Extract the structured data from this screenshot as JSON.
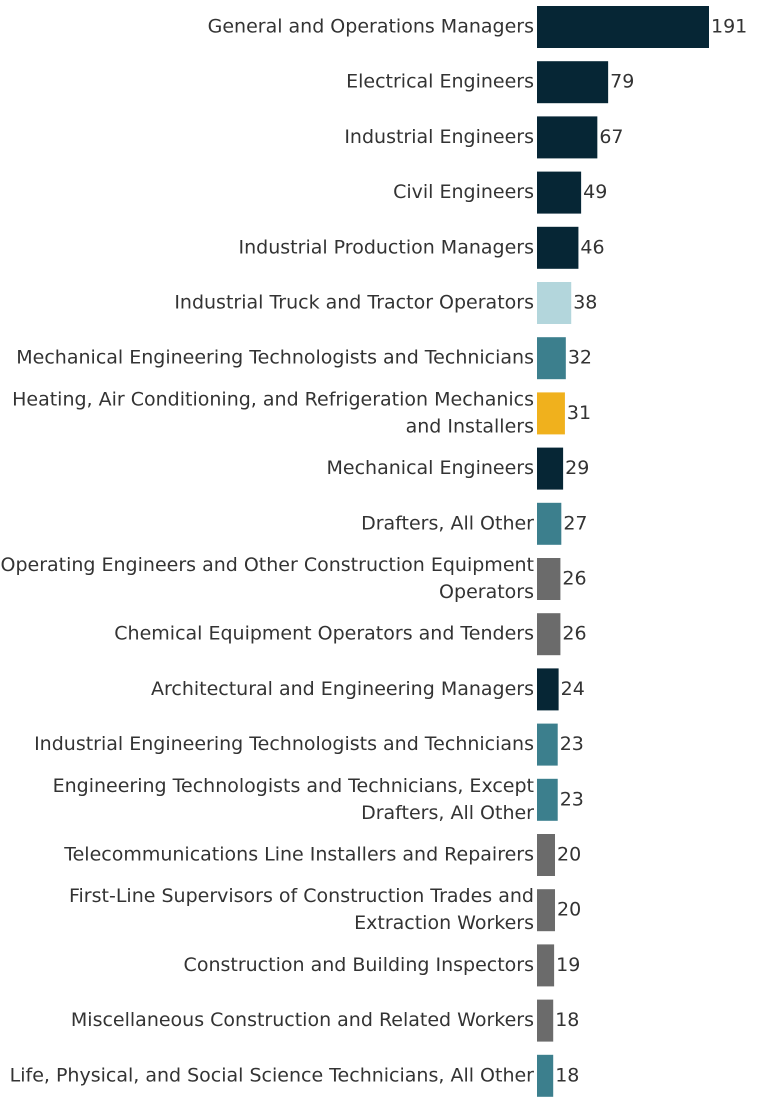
{
  "chart_data": {
    "type": "bar",
    "orientation": "horizontal",
    "title": "",
    "xlabel": "",
    "ylabel": "",
    "grid": false,
    "xlim": [
      0,
      191
    ],
    "categories": [
      [
        "General and Operations Managers"
      ],
      [
        "Electrical Engineers"
      ],
      [
        "Industrial Engineers"
      ],
      [
        "Civil Engineers"
      ],
      [
        "Industrial Production Managers"
      ],
      [
        "Industrial Truck and Tractor Operators"
      ],
      [
        "Mechanical Engineering Technologists and Technicians"
      ],
      [
        "Heating, Air Conditioning, and Refrigeration Mechanics",
        "and Installers"
      ],
      [
        "Mechanical Engineers"
      ],
      [
        "Drafters, All Other"
      ],
      [
        "Operating Engineers and Other Construction Equipment",
        "Operators"
      ],
      [
        "Chemical Equipment Operators and Tenders"
      ],
      [
        "Architectural and Engineering Managers"
      ],
      [
        "Industrial Engineering Technologists and Technicians"
      ],
      [
        "Engineering Technologists and Technicians, Except",
        "Drafters, All Other"
      ],
      [
        "Telecommunications Line Installers and Repairers"
      ],
      [
        "First-Line Supervisors of Construction Trades and",
        "Extraction Workers"
      ],
      [
        "Construction and Building Inspectors"
      ],
      [
        "Miscellaneous Construction and Related Workers"
      ],
      [
        "Life, Physical, and Social Science Technicians, All Other"
      ]
    ],
    "values": [
      191,
      79,
      67,
      49,
      46,
      38,
      32,
      31,
      29,
      27,
      26,
      26,
      24,
      23,
      23,
      20,
      20,
      19,
      18,
      18
    ],
    "value_labels": [
      "191",
      "79",
      "67",
      "49",
      "46",
      "38",
      "32",
      "31",
      "29",
      "27",
      "26",
      "26",
      "24",
      "23",
      "23",
      "20",
      "20",
      "19",
      "18",
      "18"
    ],
    "bar_colors": [
      "#062635",
      "#062635",
      "#062635",
      "#062635",
      "#062635",
      "#b3d6dc",
      "#3c7f8d",
      "#f0b11d",
      "#062635",
      "#3c7f8d",
      "#6b6b6b",
      "#6b6b6b",
      "#062635",
      "#3c7f8d",
      "#3c7f8d",
      "#6b6b6b",
      "#6b6b6b",
      "#6b6b6b",
      "#6b6b6b",
      "#3c7f8d"
    ]
  }
}
